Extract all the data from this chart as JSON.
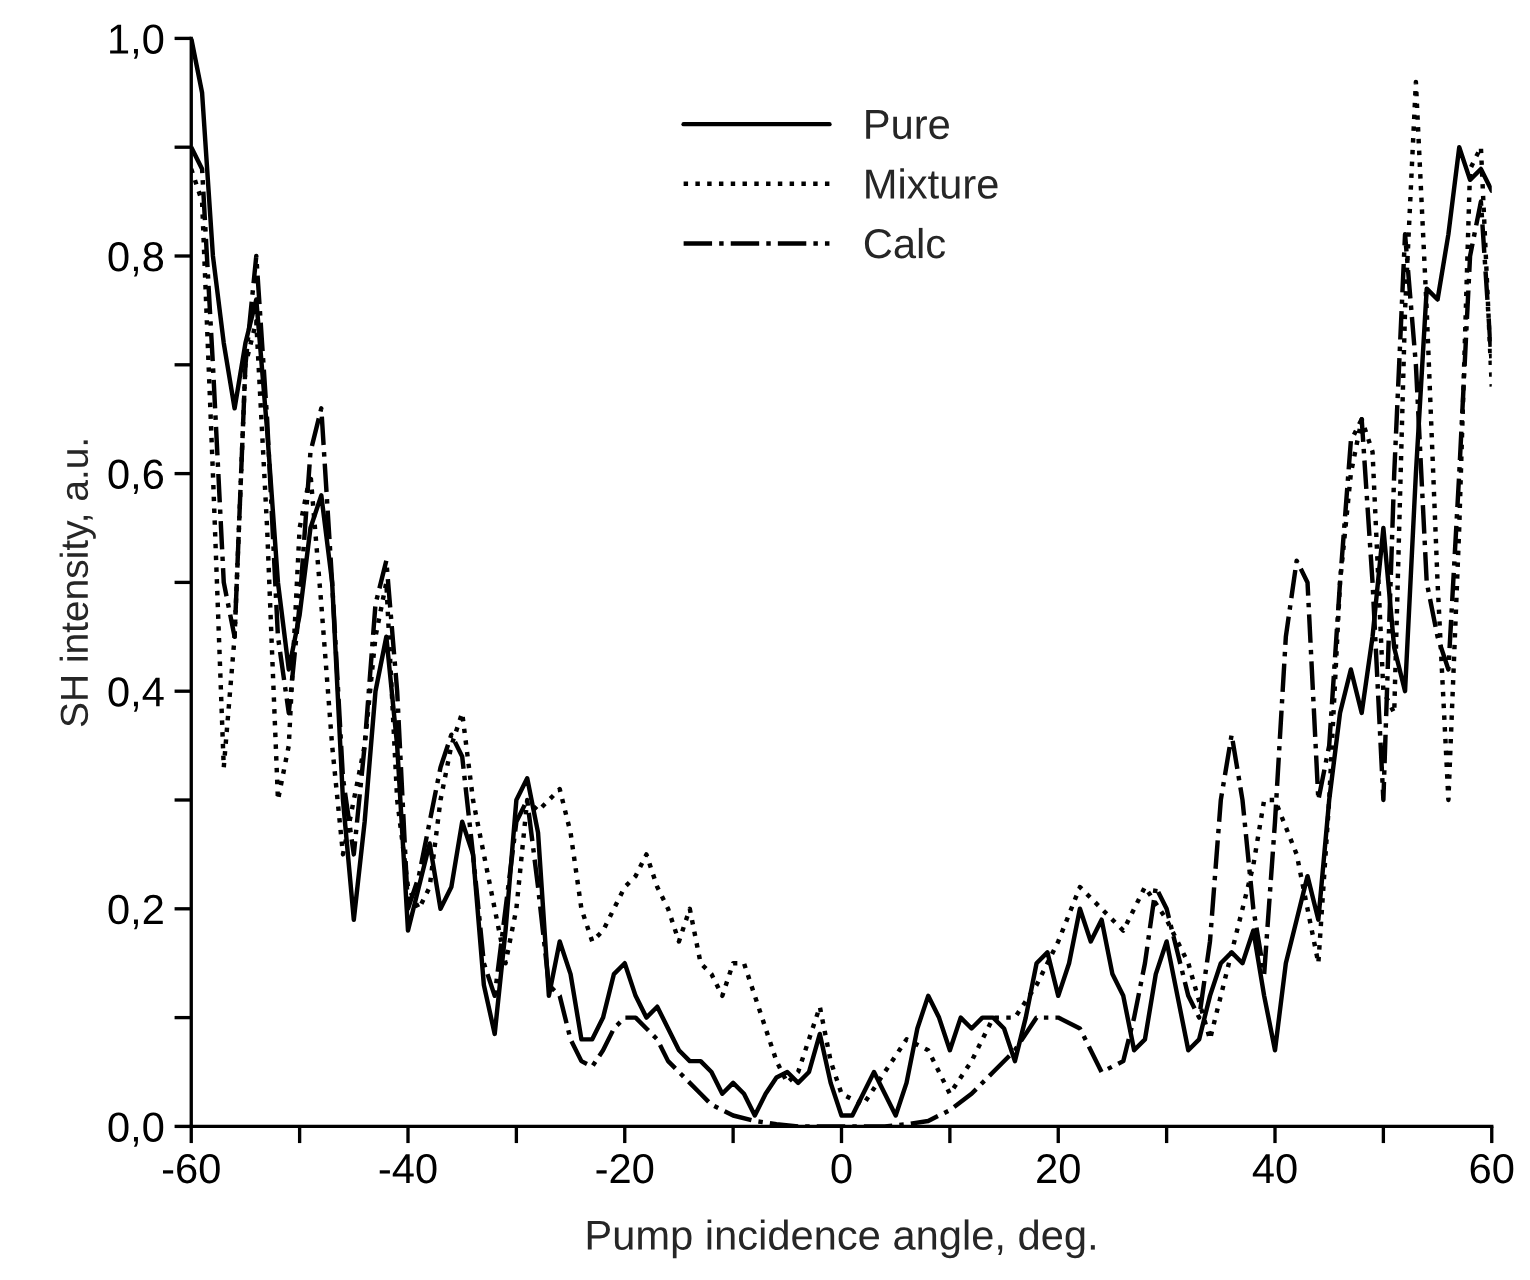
{
  "chart_data": {
    "type": "line",
    "xlabel": "Pump incidence angle, deg.",
    "ylabel": "SH intensity, a.u.",
    "xlim": [
      -60,
      60
    ],
    "ylim": [
      0,
      1.0
    ],
    "xticks": [
      -60,
      {
        "value": -50,
        "label": null
      },
      -40,
      {
        "value": -30,
        "label": null
      },
      -20,
      {
        "value": -10,
        "label": null
      },
      0,
      {
        "value": 10,
        "label": null
      },
      20,
      {
        "value": 30,
        "label": null
      },
      40,
      {
        "value": 50,
        "label": null
      },
      60
    ],
    "yticks": [
      {
        "value": 0,
        "label": "0,0"
      },
      {
        "value": 0.1,
        "label": null
      },
      {
        "value": 0.2,
        "label": "0,2"
      },
      {
        "value": 0.3,
        "label": null
      },
      {
        "value": 0.4,
        "label": "0,4"
      },
      {
        "value": 0.5,
        "label": null
      },
      {
        "value": 0.6,
        "label": "0,6"
      },
      {
        "value": 0.7,
        "label": null
      },
      {
        "value": 0.8,
        "label": "0,8"
      },
      {
        "value": 0.9,
        "label": null
      },
      {
        "value": 1.0,
        "label": "1,0"
      }
    ],
    "grid": false,
    "legend": "top",
    "marker": "none",
    "series": [
      {
        "name": "Pure",
        "color": "#000000",
        "line_style": "solid",
        "x": [
          -60,
          -59,
          -58,
          -57,
          -56,
          -55,
          -54,
          -53,
          -52,
          -51,
          -50,
          -49,
          -48,
          -47,
          -46,
          -45,
          -44,
          -43,
          -42,
          -41,
          -40,
          -39,
          -38,
          -37,
          -36,
          -35,
          -34,
          -33,
          -32,
          -31,
          -30,
          -29,
          -28,
          -27,
          -26,
          -25,
          -24,
          -23,
          -22,
          -21,
          -20,
          -19,
          -18,
          -17,
          -16,
          -15,
          -14,
          -13,
          -12,
          -11,
          -10,
          -9,
          -8,
          -7,
          -6,
          -5,
          -4,
          -3,
          -2,
          -1,
          0,
          1,
          2,
          3,
          4,
          5,
          6,
          7,
          8,
          9,
          10,
          11,
          12,
          13,
          14,
          15,
          16,
          17,
          18,
          19,
          20,
          21,
          22,
          23,
          24,
          25,
          26,
          27,
          28,
          29,
          30,
          31,
          32,
          33,
          34,
          35,
          36,
          37,
          38,
          39,
          40,
          41,
          42,
          43,
          44,
          45,
          46,
          47,
          48,
          49,
          50,
          51,
          52,
          53,
          54,
          55,
          56,
          57,
          58,
          59,
          60
        ],
        "values": [
          1.0,
          0.95,
          0.8,
          0.72,
          0.66,
          0.72,
          0.76,
          0.64,
          0.5,
          0.42,
          0.47,
          0.55,
          0.58,
          0.5,
          0.3,
          0.19,
          0.28,
          0.4,
          0.45,
          0.35,
          0.18,
          0.22,
          0.26,
          0.2,
          0.22,
          0.28,
          0.25,
          0.13,
          0.085,
          0.18,
          0.3,
          0.32,
          0.27,
          0.12,
          0.17,
          0.14,
          0.08,
          0.08,
          0.1,
          0.14,
          0.15,
          0.12,
          0.1,
          0.11,
          0.09,
          0.07,
          0.06,
          0.06,
          0.05,
          0.03,
          0.04,
          0.03,
          0.01,
          0.03,
          0.045,
          0.05,
          0.04,
          0.05,
          0.085,
          0.04,
          0.01,
          0.01,
          0.03,
          0.05,
          0.03,
          0.01,
          0.04,
          0.09,
          0.12,
          0.1,
          0.07,
          0.1,
          0.09,
          0.1,
          0.1,
          0.09,
          0.06,
          0.1,
          0.15,
          0.16,
          0.12,
          0.15,
          0.2,
          0.17,
          0.19,
          0.14,
          0.12,
          0.07,
          0.08,
          0.14,
          0.17,
          0.12,
          0.07,
          0.08,
          0.12,
          0.15,
          0.16,
          0.15,
          0.18,
          0.12,
          0.07,
          0.15,
          0.19,
          0.23,
          0.19,
          0.3,
          0.38,
          0.42,
          0.38,
          0.45,
          0.55,
          0.44,
          0.4,
          0.6,
          0.77,
          0.76,
          0.82,
          0.9,
          0.87,
          0.88,
          0.86
        ]
      },
      {
        "name": "Mixture",
        "color": "#000000",
        "line_style": "dotted",
        "x": [
          -60,
          -59,
          -58,
          -57,
          -56,
          -55,
          -54,
          -53,
          -52,
          -51,
          -50,
          -49,
          -48,
          -47,
          -46,
          -45,
          -44,
          -43,
          -42,
          -41,
          -40,
          -39,
          -38,
          -37,
          -36,
          -35,
          -34,
          -33,
          -32,
          -31,
          -30,
          -29,
          -28,
          -27,
          -26,
          -25,
          -24,
          -23,
          -22,
          -21,
          -20,
          -19,
          -18,
          -17,
          -16,
          -15,
          -14,
          -13,
          -12,
          -11,
          -10,
          -9,
          -8,
          -7,
          -6,
          -5,
          -4,
          -3,
          -2,
          -1,
          0,
          2,
          4,
          6,
          8,
          10,
          12,
          14,
          16,
          18,
          20,
          22,
          24,
          26,
          28,
          30,
          32,
          34,
          36,
          38,
          39,
          40,
          42,
          44,
          45,
          46,
          47,
          48,
          49,
          50,
          51,
          52,
          53,
          54,
          55,
          56,
          57,
          58,
          59,
          60
        ],
        "values": [
          0.88,
          0.85,
          0.6,
          0.33,
          0.45,
          0.7,
          0.74,
          0.55,
          0.3,
          0.35,
          0.55,
          0.6,
          0.48,
          0.35,
          0.25,
          0.3,
          0.35,
          0.45,
          0.5,
          0.3,
          0.22,
          0.2,
          0.22,
          0.3,
          0.35,
          0.38,
          0.3,
          0.25,
          0.2,
          0.15,
          0.2,
          0.3,
          0.29,
          0.3,
          0.31,
          0.27,
          0.2,
          0.17,
          0.18,
          0.2,
          0.22,
          0.23,
          0.25,
          0.22,
          0.2,
          0.17,
          0.2,
          0.15,
          0.14,
          0.12,
          0.15,
          0.15,
          0.12,
          0.09,
          0.06,
          0.04,
          0.05,
          0.08,
          0.11,
          0.06,
          0.03,
          0.02,
          0.05,
          0.08,
          0.07,
          0.03,
          0.06,
          0.1,
          0.1,
          0.13,
          0.17,
          0.22,
          0.2,
          0.18,
          0.22,
          0.19,
          0.15,
          0.08,
          0.16,
          0.24,
          0.3,
          0.3,
          0.25,
          0.15,
          0.3,
          0.5,
          0.6,
          0.65,
          0.62,
          0.4,
          0.38,
          0.75,
          0.96,
          0.75,
          0.5,
          0.3,
          0.55,
          0.88,
          0.9,
          0.68
        ]
      },
      {
        "name": "Calc",
        "color": "#000000",
        "line_style": "dashdot",
        "x": [
          -60,
          -59,
          -58,
          -57,
          -56,
          -55,
          -54,
          -53,
          -52,
          -51,
          -50,
          -49,
          -48,
          -47,
          -46,
          -45,
          -44,
          -43,
          -42,
          -41,
          -40,
          -39,
          -38,
          -37,
          -36,
          -35,
          -34,
          -33,
          -32,
          -31,
          -30,
          -29,
          -28,
          -27,
          -26,
          -25,
          -24,
          -23,
          -22,
          -21,
          -20,
          -19,
          -18,
          -17,
          -16,
          -15,
          -14,
          -13,
          -12,
          -11,
          -10,
          -8,
          -6,
          -4,
          0,
          4,
          6,
          8,
          10,
          12,
          14,
          16,
          18,
          20,
          22,
          24,
          26,
          27,
          28,
          29,
          30,
          31,
          32,
          33,
          34,
          35,
          36,
          37,
          38,
          39,
          40,
          41,
          42,
          43,
          44,
          45,
          46,
          47,
          48,
          49,
          50,
          51,
          52,
          53,
          54,
          55,
          56,
          57,
          58,
          59,
          60
        ],
        "values": [
          0.9,
          0.88,
          0.7,
          0.5,
          0.45,
          0.7,
          0.8,
          0.65,
          0.45,
          0.38,
          0.48,
          0.62,
          0.66,
          0.5,
          0.32,
          0.25,
          0.35,
          0.48,
          0.52,
          0.4,
          0.2,
          0.23,
          0.28,
          0.33,
          0.36,
          0.34,
          0.25,
          0.15,
          0.12,
          0.2,
          0.28,
          0.3,
          0.22,
          0.13,
          0.12,
          0.08,
          0.06,
          0.055,
          0.07,
          0.09,
          0.1,
          0.1,
          0.09,
          0.08,
          0.06,
          0.05,
          0.04,
          0.03,
          0.02,
          0.015,
          0.01,
          0.005,
          0.002,
          0.0,
          0.0,
          0.0,
          0.002,
          0.005,
          0.015,
          0.03,
          0.05,
          0.07,
          0.1,
          0.1,
          0.09,
          0.05,
          0.06,
          0.1,
          0.15,
          0.22,
          0.2,
          0.16,
          0.12,
          0.1,
          0.17,
          0.3,
          0.36,
          0.3,
          0.2,
          0.14,
          0.28,
          0.45,
          0.52,
          0.5,
          0.3,
          0.35,
          0.5,
          0.63,
          0.65,
          0.5,
          0.3,
          0.6,
          0.82,
          0.7,
          0.5,
          0.45,
          0.42,
          0.6,
          0.8,
          0.85,
          0.7
        ]
      }
    ]
  }
}
